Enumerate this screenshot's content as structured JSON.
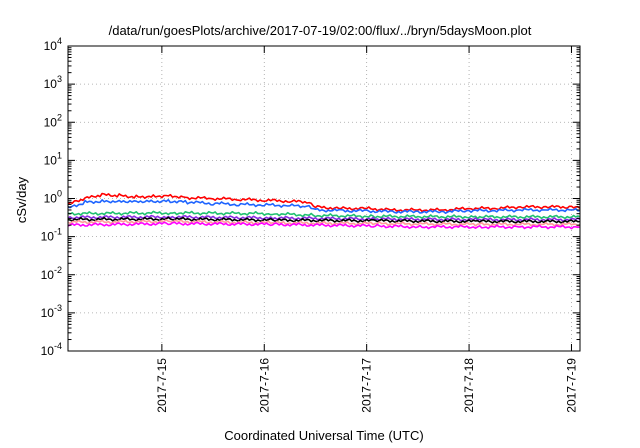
{
  "chart_data": {
    "type": "line",
    "title": "/data/run/goesPlots/archive/2017-07-19/02:00/flux/../bryn/5daysMoon.plot",
    "xlabel": "Coordinated Universal Time (UTC)",
    "ylabel": "cSv/day",
    "y_scale": "log",
    "xlim": [
      "2017-07-14T02:00",
      "2017-07-19T02:00"
    ],
    "ylim": [
      0.0001,
      10000
    ],
    "x_ticks": [
      "2017-7-15",
      "2017-7-16",
      "2017-7-17",
      "2017-7-18",
      "2017-7-19"
    ],
    "y_ticks": [
      {
        "base": "10",
        "exp": "-4",
        "value": 0.0001
      },
      {
        "base": "10",
        "exp": "-3",
        "value": 0.001
      },
      {
        "base": "10",
        "exp": "-2",
        "value": 0.01
      },
      {
        "base": "10",
        "exp": "-1",
        "value": 0.1
      },
      {
        "base": "10",
        "exp": "0",
        "value": 1
      },
      {
        "base": "10",
        "exp": "1",
        "value": 10
      },
      {
        "base": "10",
        "exp": "2",
        "value": 100
      },
      {
        "base": "10",
        "exp": "3",
        "value": 1000
      },
      {
        "base": "10",
        "exp": "4",
        "value": 10000
      }
    ],
    "grid": true,
    "legend": "none",
    "series": [
      {
        "color": "#ff0000",
        "x": [
          "2017-07-14T02:00",
          "2017-07-14T06:00",
          "2017-07-14T10:00",
          "2017-07-14T14:00",
          "2017-07-14T18:00",
          "2017-07-14T22:00",
          "2017-07-15T02:00",
          "2017-07-15T06:00",
          "2017-07-15T12:00",
          "2017-07-15T18:00",
          "2017-07-16T00:00",
          "2017-07-16T06:00",
          "2017-07-16T10:00",
          "2017-07-16T12:00",
          "2017-07-16T18:00",
          "2017-07-17T00:00",
          "2017-07-17T06:00",
          "2017-07-17T12:00",
          "2017-07-17T18:00",
          "2017-07-18T00:00",
          "2017-07-18T06:00",
          "2017-07-18T12:00",
          "2017-07-18T18:00",
          "2017-07-19T00:00",
          "2017-07-19T02:00"
        ],
        "y": [
          0.7,
          1.0,
          1.25,
          1.2,
          1.1,
          1.15,
          1.2,
          1.05,
          1.0,
          0.95,
          0.9,
          0.85,
          0.8,
          0.6,
          0.55,
          0.55,
          0.5,
          0.5,
          0.5,
          0.55,
          0.55,
          0.6,
          0.6,
          0.6,
          0.55
        ]
      },
      {
        "color": "#1e64ff",
        "x": [
          "2017-07-14T02:00",
          "2017-07-14T06:00",
          "2017-07-14T10:00",
          "2017-07-14T14:00",
          "2017-07-14T18:00",
          "2017-07-14T22:00",
          "2017-07-15T02:00",
          "2017-07-15T06:00",
          "2017-07-15T12:00",
          "2017-07-15T18:00",
          "2017-07-16T00:00",
          "2017-07-16T06:00",
          "2017-07-16T10:00",
          "2017-07-16T12:00",
          "2017-07-16T18:00",
          "2017-07-17T00:00",
          "2017-07-17T06:00",
          "2017-07-17T12:00",
          "2017-07-17T18:00",
          "2017-07-18T00:00",
          "2017-07-18T06:00",
          "2017-07-18T12:00",
          "2017-07-18T18:00",
          "2017-07-19T00:00",
          "2017-07-19T02:00"
        ],
        "y": [
          0.55,
          0.8,
          0.85,
          0.85,
          0.85,
          0.85,
          0.85,
          0.8,
          0.75,
          0.7,
          0.68,
          0.65,
          0.62,
          0.5,
          0.48,
          0.47,
          0.45,
          0.45,
          0.45,
          0.48,
          0.48,
          0.5,
          0.5,
          0.5,
          0.48
        ]
      },
      {
        "color": "#20c070",
        "x": [
          "2017-07-14T02:00",
          "2017-07-15T02:00",
          "2017-07-16T02:00",
          "2017-07-16T12:00",
          "2017-07-17T02:00",
          "2017-07-18T02:00",
          "2017-07-19T02:00"
        ],
        "y": [
          0.4,
          0.42,
          0.4,
          0.36,
          0.34,
          0.33,
          0.33
        ]
      },
      {
        "color": "#8a2be2",
        "x": [
          "2017-07-14T02:00",
          "2017-07-15T02:00",
          "2017-07-16T02:00",
          "2017-07-17T02:00",
          "2017-07-18T02:00",
          "2017-07-19T02:00"
        ],
        "y": [
          0.32,
          0.33,
          0.31,
          0.29,
          0.28,
          0.28
        ]
      },
      {
        "color": "#000000",
        "x": [
          "2017-07-14T02:00",
          "2017-07-15T02:00",
          "2017-07-16T02:00",
          "2017-07-17T02:00",
          "2017-07-18T02:00",
          "2017-07-19T02:00"
        ],
        "y": [
          0.28,
          0.29,
          0.27,
          0.26,
          0.25,
          0.25
        ]
      },
      {
        "color": "#ff9a9a",
        "x": [
          "2017-07-14T02:00",
          "2017-07-15T02:00",
          "2017-07-16T02:00",
          "2017-07-17T02:00",
          "2017-07-18T02:00",
          "2017-07-19T02:00"
        ],
        "y": [
          0.24,
          0.25,
          0.23,
          0.22,
          0.21,
          0.21
        ]
      },
      {
        "color": "#ff00ff",
        "x": [
          "2017-07-14T02:00",
          "2017-07-15T02:00",
          "2017-07-16T02:00",
          "2017-07-17T02:00",
          "2017-07-17T12:00",
          "2017-07-18T02:00",
          "2017-07-18T12:00",
          "2017-07-19T02:00"
        ],
        "y": [
          0.2,
          0.22,
          0.21,
          0.19,
          0.18,
          0.18,
          0.18,
          0.18
        ]
      }
    ]
  }
}
